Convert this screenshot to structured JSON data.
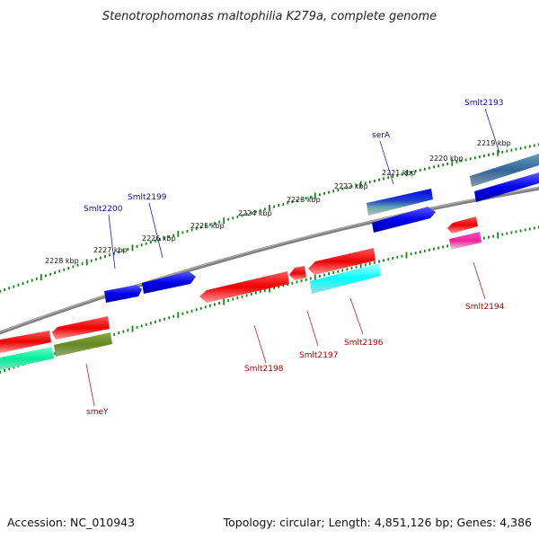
{
  "title": "Stenotrophomonas maltophilia K279a, complete genome",
  "footer": {
    "accession": "Accession: NC_010943",
    "topology": "Topology: circular; Length: 4,851,126 bp; Genes: 4,386"
  },
  "scale_labels": [
    "2228 kbp",
    "2227 kbp",
    "2226 kbp",
    "2225 kbp",
    "2224 kbp",
    "2223 kbp",
    "2222 kbp",
    "2221 kbp",
    "2220 kbp",
    "2219 kbp"
  ],
  "genes_forward": [
    "Smlt2200",
    "Smlt2199",
    "serA",
    "Smlt2193"
  ],
  "genes_reverse": [
    "smeY",
    "Smlt2198",
    "Smlt2197",
    "Smlt2196",
    "Smlt2194"
  ],
  "colors": {
    "backbone": "#808080",
    "tick": "#118811",
    "forward_gene": "#0000ee",
    "reverse_gene": "#ee0000",
    "cyan_gene": "#00ffff",
    "seagreen_gene": "#00ee99",
    "olive_gene": "#668822",
    "steelblue_gene": "#336699",
    "pink_gene": "#ee2299"
  }
}
